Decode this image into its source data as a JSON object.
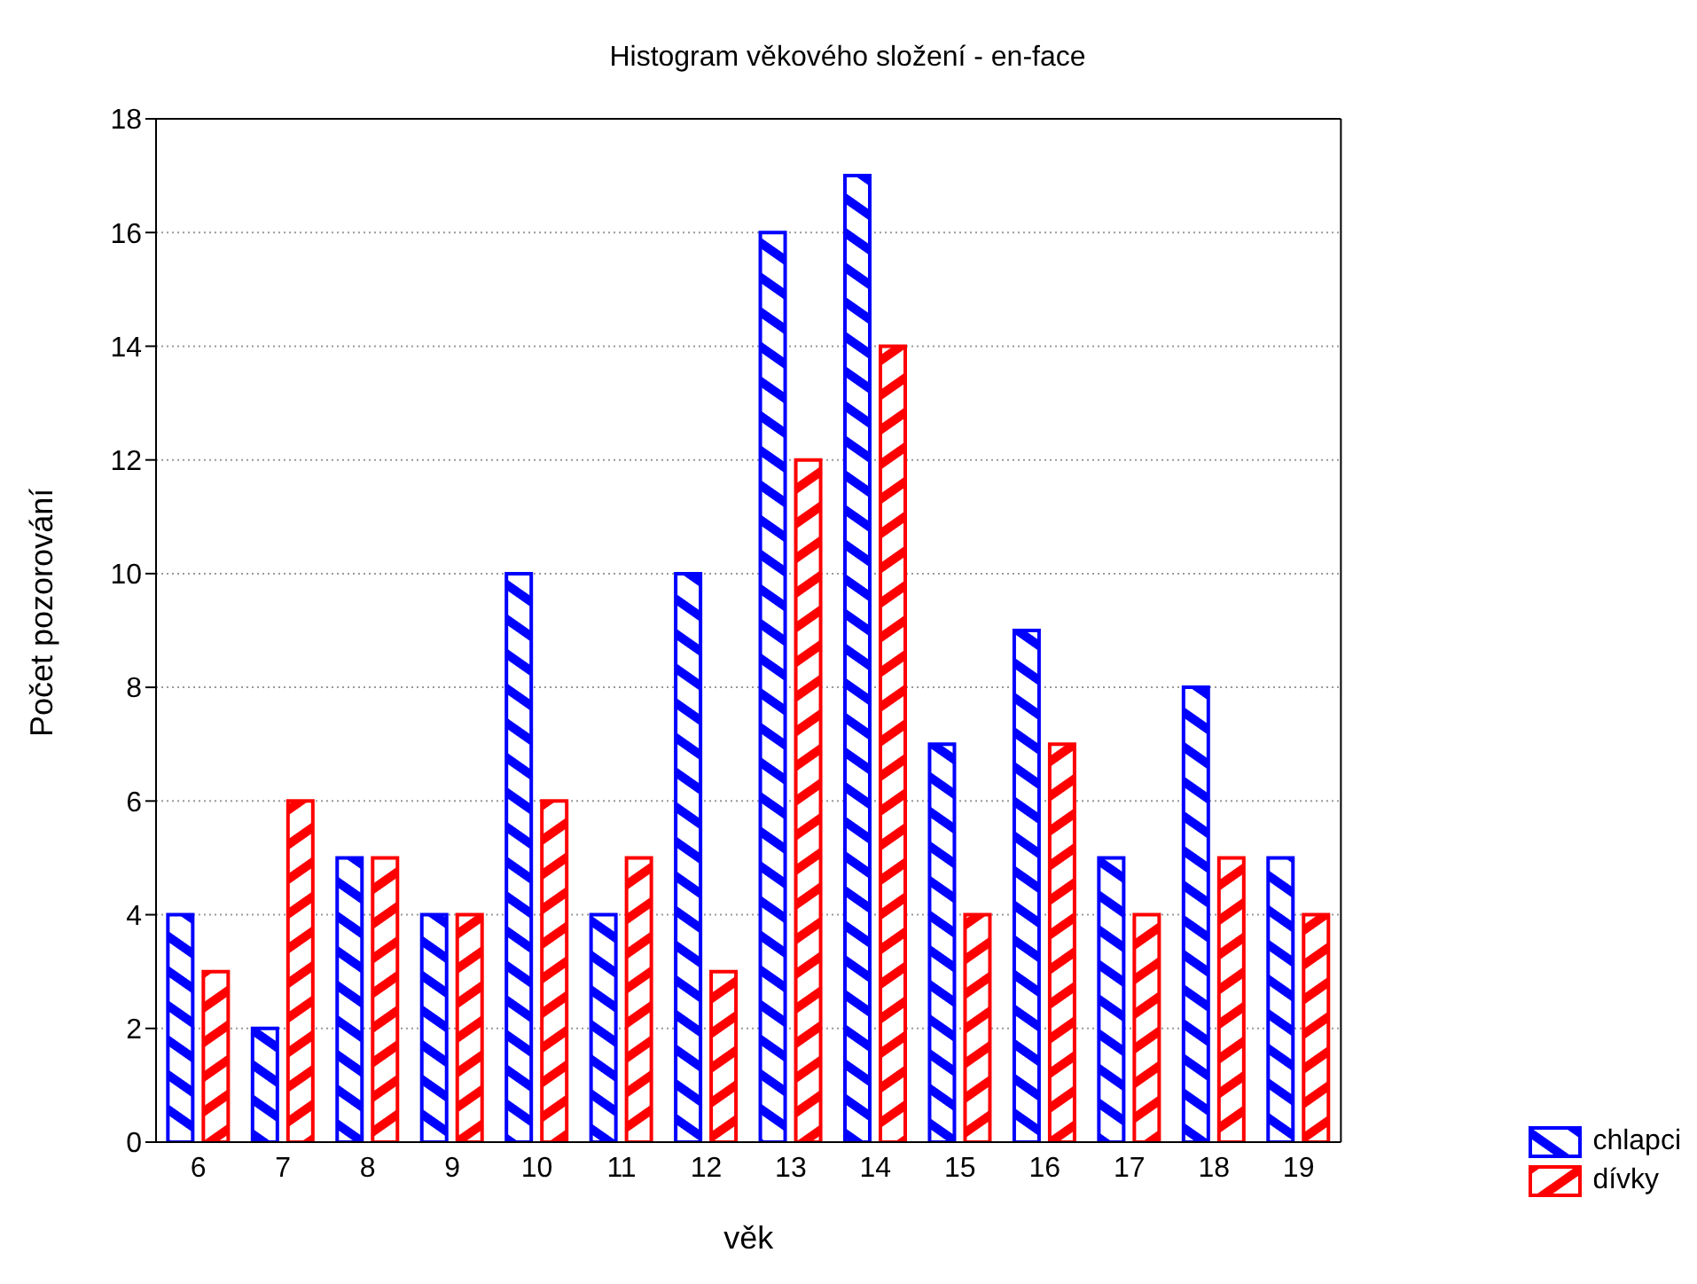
{
  "chart_data": {
    "type": "bar",
    "title": "Histogram věkového složení - en-face",
    "xlabel": "věk",
    "ylabel": "Počet pozorování",
    "categories": [
      "6",
      "7",
      "8",
      "9",
      "10",
      "11",
      "12",
      "13",
      "14",
      "15",
      "16",
      "17",
      "18",
      "19"
    ],
    "series": [
      {
        "name": "chlapci",
        "color": "#0000ff",
        "values": [
          4,
          2,
          5,
          4,
          10,
          4,
          10,
          16,
          17,
          7,
          9,
          5,
          8,
          5
        ]
      },
      {
        "name": "dívky",
        "color": "#ff0000",
        "values": [
          3,
          6,
          5,
          4,
          6,
          5,
          3,
          12,
          14,
          4,
          7,
          4,
          5,
          4
        ]
      }
    ],
    "ylim": [
      0,
      18
    ],
    "yticks": [
      0,
      2,
      4,
      6,
      8,
      10,
      12,
      14,
      16,
      18
    ],
    "grid": "y",
    "legend": "bottom right"
  }
}
